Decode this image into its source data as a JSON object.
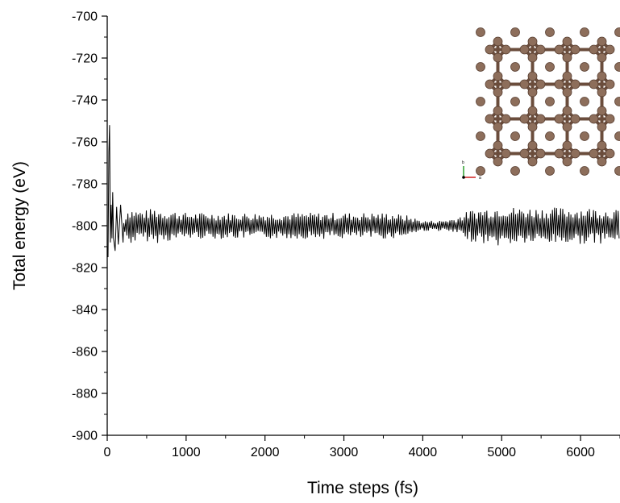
{
  "chart_data": {
    "type": "line",
    "title": "",
    "xlabel": "Time steps (fs)",
    "ylabel": "Total energy (eV)",
    "xlim": [
      0,
      6500
    ],
    "ylim": [
      -900,
      -700
    ],
    "xticks": [
      "0",
      "1000",
      "2000",
      "3000",
      "4000",
      "5000",
      "6000"
    ],
    "yticks": [
      "-700",
      "-720",
      "-740",
      "-760",
      "-780",
      "-800",
      "-820",
      "-840",
      "-860",
      "-880",
      "-900"
    ],
    "grid": false,
    "line_color": "#000000",
    "series": [
      {
        "x": [
          0,
          10,
          20,
          30,
          40,
          50,
          60,
          70,
          80,
          100,
          120,
          140,
          170,
          200,
          250,
          300,
          400,
          500,
          600,
          700,
          800,
          1000,
          1200,
          1400,
          1600,
          1800,
          2000,
          2200,
          2400,
          2600,
          2800,
          3000,
          3200,
          3400,
          3600,
          3800,
          4000,
          4200,
          4400,
          4600,
          4800,
          5000,
          5200,
          5400,
          5600,
          5800,
          6000,
          6200,
          6500
        ],
        "y": [
          -810,
          -815,
          -765,
          -752,
          -808,
          -790,
          -806,
          -784,
          -806,
          -812,
          -791,
          -809,
          -790,
          -808,
          -793,
          -807,
          -797,
          -805,
          -794,
          -806,
          -793,
          -804,
          -796,
          -805,
          -795,
          -804,
          -797,
          -804,
          -796,
          -805,
          -797,
          -803,
          -797,
          -804,
          -797,
          -803,
          -800,
          -801,
          -799,
          -804,
          -795,
          -790,
          -805,
          -794,
          -806,
          -795,
          -805,
          -794,
          -800
        ],
        "amplitude": [
          0,
          0,
          0,
          0,
          0,
          0,
          0,
          0,
          0,
          0,
          0,
          0,
          0,
          0,
          7,
          7,
          6,
          6,
          7,
          6,
          6,
          5,
          5,
          5,
          5,
          5,
          5,
          5,
          5,
          5,
          5,
          5,
          5,
          5,
          5,
          4,
          2,
          2,
          3,
          6,
          7,
          8,
          7,
          7,
          7,
          7,
          7,
          7,
          6
        ]
      }
    ],
    "inset": {
      "content": "atomic-structure",
      "atom_color": "#8d6e5b",
      "bond_color": "#6b4d3c",
      "axis_labels": [
        "a",
        "b"
      ],
      "axis_colors": [
        "#d02020",
        "#2fa02f"
      ]
    }
  }
}
